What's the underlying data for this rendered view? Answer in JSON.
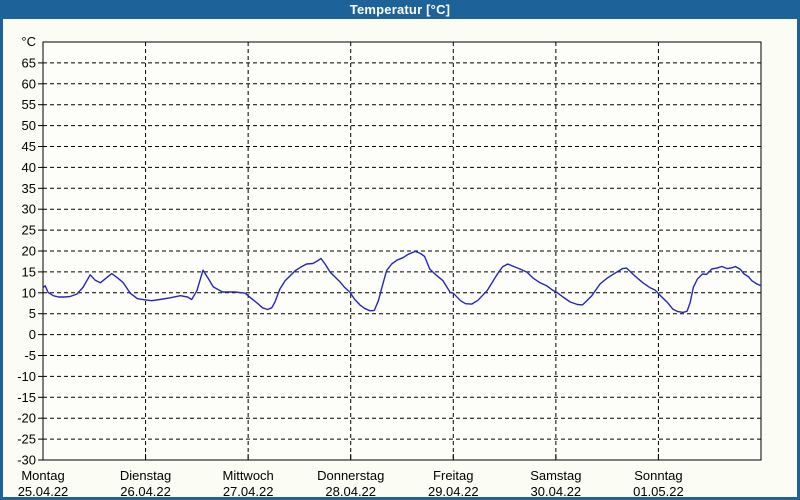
{
  "window": {
    "title": "Temperatur [°C]"
  },
  "colors": {
    "titlebar_bg": "#1d6399",
    "titlebar_text": "#ffffff",
    "frame_border": "#1d6399",
    "canvas_bg": "#fbfcf4",
    "plot_bg": "#fdfefa",
    "grid": "#000000",
    "axis": "#000000",
    "line": "#2626bb",
    "label_text": "#000000"
  },
  "chart_data": {
    "type": "line",
    "title": "Temperatur [°C]",
    "y_unit_label": "°C",
    "ylim": [
      -30,
      70
    ],
    "y_tick_step": 5,
    "y_tick_labels": [
      65,
      60,
      55,
      50,
      45,
      40,
      35,
      30,
      25,
      20,
      15,
      10,
      5,
      0,
      -5,
      -10,
      -15,
      -20,
      -25,
      -30
    ],
    "x_range_days": [
      0,
      7
    ],
    "grid": "dashed",
    "legend": "none",
    "x_days": [
      {
        "name": "Montag",
        "date": "25.04.22"
      },
      {
        "name": "Dienstag",
        "date": "26.04.22"
      },
      {
        "name": "Mittwoch",
        "date": "27.04.22"
      },
      {
        "name": "Donnerstag",
        "date": "28.04.22"
      },
      {
        "name": "Freitag",
        "date": "29.04.22"
      },
      {
        "name": "Samstag",
        "date": "30.04.22"
      },
      {
        "name": "Sonntag",
        "date": "01.05.22"
      }
    ],
    "series": [
      {
        "name": "Temperatur",
        "color": "#2626bb",
        "points": [
          [
            0.0,
            11.2
          ],
          [
            0.02,
            11.7
          ],
          [
            0.05,
            10.1
          ],
          [
            0.1,
            9.3
          ],
          [
            0.15,
            9.0
          ],
          [
            0.21,
            9.0
          ],
          [
            0.26,
            9.1
          ],
          [
            0.33,
            9.7
          ],
          [
            0.39,
            11.3
          ],
          [
            0.46,
            14.3
          ],
          [
            0.51,
            13.0
          ],
          [
            0.56,
            12.4
          ],
          [
            0.6,
            13.2
          ],
          [
            0.67,
            14.6
          ],
          [
            0.73,
            13.5
          ],
          [
            0.78,
            12.5
          ],
          [
            0.85,
            9.9
          ],
          [
            0.92,
            8.6
          ],
          [
            1.0,
            8.3
          ],
          [
            1.06,
            8.1
          ],
          [
            1.14,
            8.4
          ],
          [
            1.24,
            8.8
          ],
          [
            1.34,
            9.3
          ],
          [
            1.41,
            9.0
          ],
          [
            1.45,
            8.4
          ],
          [
            1.5,
            10.5
          ],
          [
            1.56,
            15.4
          ],
          [
            1.61,
            13.5
          ],
          [
            1.66,
            11.4
          ],
          [
            1.75,
            10.2
          ],
          [
            1.87,
            10.2
          ],
          [
            1.97,
            9.9
          ],
          [
            2.02,
            8.9
          ],
          [
            2.1,
            7.3
          ],
          [
            2.14,
            6.4
          ],
          [
            2.19,
            6.0
          ],
          [
            2.23,
            6.4
          ],
          [
            2.26,
            7.7
          ],
          [
            2.31,
            10.9
          ],
          [
            2.36,
            12.9
          ],
          [
            2.41,
            14.1
          ],
          [
            2.46,
            15.3
          ],
          [
            2.51,
            16.1
          ],
          [
            2.57,
            16.9
          ],
          [
            2.63,
            17.0
          ],
          [
            2.68,
            17.7
          ],
          [
            2.71,
            18.2
          ],
          [
            2.75,
            16.9
          ],
          [
            2.8,
            14.9
          ],
          [
            2.85,
            13.7
          ],
          [
            2.9,
            12.5
          ],
          [
            2.94,
            11.3
          ],
          [
            2.99,
            10.2
          ],
          [
            3.04,
            8.4
          ],
          [
            3.09,
            7.1
          ],
          [
            3.14,
            6.2
          ],
          [
            3.19,
            5.7
          ],
          [
            3.23,
            5.8
          ],
          [
            3.27,
            8.1
          ],
          [
            3.3,
            10.9
          ],
          [
            3.35,
            15.3
          ],
          [
            3.4,
            16.9
          ],
          [
            3.45,
            17.8
          ],
          [
            3.51,
            18.4
          ],
          [
            3.56,
            19.2
          ],
          [
            3.63,
            19.9
          ],
          [
            3.68,
            19.4
          ],
          [
            3.72,
            18.7
          ],
          [
            3.77,
            15.7
          ],
          [
            3.83,
            14.3
          ],
          [
            3.9,
            12.9
          ],
          [
            3.97,
            10.1
          ],
          [
            4.0,
            9.9
          ],
          [
            4.07,
            8.1
          ],
          [
            4.12,
            7.4
          ],
          [
            4.18,
            7.3
          ],
          [
            4.24,
            8.2
          ],
          [
            4.33,
            10.5
          ],
          [
            4.43,
            14.5
          ],
          [
            4.48,
            16.2
          ],
          [
            4.53,
            16.9
          ],
          [
            4.59,
            16.3
          ],
          [
            4.65,
            15.7
          ],
          [
            4.72,
            14.9
          ],
          [
            4.78,
            13.5
          ],
          [
            4.84,
            12.5
          ],
          [
            4.91,
            11.7
          ],
          [
            4.97,
            10.6
          ],
          [
            5.01,
            10.1
          ],
          [
            5.07,
            9.0
          ],
          [
            5.14,
            7.8
          ],
          [
            5.21,
            7.2
          ],
          [
            5.26,
            7.1
          ],
          [
            5.31,
            8.3
          ],
          [
            5.35,
            9.3
          ],
          [
            5.43,
            12.1
          ],
          [
            5.5,
            13.5
          ],
          [
            5.55,
            14.3
          ],
          [
            5.61,
            15.2
          ],
          [
            5.65,
            15.8
          ],
          [
            5.69,
            15.9
          ],
          [
            5.75,
            14.5
          ],
          [
            5.8,
            13.4
          ],
          [
            5.85,
            12.4
          ],
          [
            5.92,
            11.2
          ],
          [
            5.97,
            10.6
          ],
          [
            6.0,
            9.8
          ],
          [
            6.05,
            8.6
          ],
          [
            6.09,
            7.6
          ],
          [
            6.14,
            6.1
          ],
          [
            6.19,
            5.5
          ],
          [
            6.24,
            5.3
          ],
          [
            6.28,
            5.6
          ],
          [
            6.31,
            7.7
          ],
          [
            6.34,
            11.3
          ],
          [
            6.38,
            13.3
          ],
          [
            6.43,
            14.5
          ],
          [
            6.47,
            14.4
          ],
          [
            6.52,
            15.7
          ],
          [
            6.57,
            15.9
          ],
          [
            6.62,
            16.3
          ],
          [
            6.67,
            15.8
          ],
          [
            6.72,
            16.0
          ],
          [
            6.75,
            16.3
          ],
          [
            6.8,
            15.6
          ],
          [
            6.83,
            14.6
          ],
          [
            6.88,
            13.8
          ],
          [
            6.91,
            12.9
          ],
          [
            6.96,
            12.1
          ],
          [
            7.0,
            11.7
          ]
        ]
      }
    ]
  }
}
